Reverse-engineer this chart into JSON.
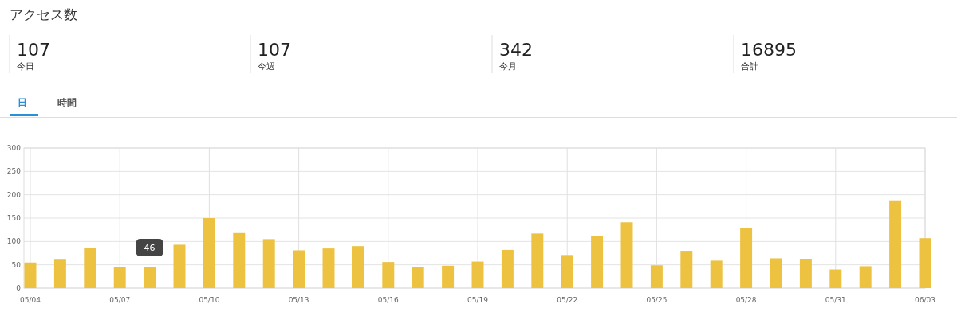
{
  "chart_data": [
    {
      "type": "other",
      "title": "アクセス数",
      "categories": [
        "今日",
        "今週",
        "今月",
        "合計"
      ],
      "values": [
        107,
        107,
        342,
        16895
      ],
      "data_labels": true
    },
    {
      "type": "bar",
      "color": "#ecc240",
      "x": [
        "--05-04",
        "--05-05",
        "--05-06",
        "--05-07",
        "--05-08",
        "--05-09",
        "--05-10",
        "--05-11",
        "--05-12",
        "--05-13",
        "--05-14",
        "--05-15",
        "--05-16",
        "--05-17",
        "--05-18",
        "--05-19",
        "--05-20",
        "--05-21",
        "--05-22",
        "--05-23",
        "--05-24",
        "--05-25",
        "--05-26",
        "--05-27",
        "--05-28",
        "--05-29",
        "--05-30",
        "--05-31",
        "--06-01",
        "--06-02",
        "--06-03"
      ],
      "values": [
        55,
        61,
        87,
        46,
        46,
        93,
        150,
        118,
        105,
        81,
        85,
        90,
        56,
        45,
        48,
        57,
        82,
        117,
        71,
        112,
        141,
        49,
        80,
        59,
        128,
        64,
        62,
        40,
        47,
        188,
        107
      ],
      "xlim": [
        "--05-04",
        "--06-03"
      ],
      "xticks": [
        {
          "value": "--05-04",
          "label": "05/04"
        },
        {
          "value": "--05-07",
          "label": "05/07"
        },
        {
          "value": "--05-10",
          "label": "05/10"
        },
        {
          "value": "--05-13",
          "label": "05/13"
        },
        {
          "value": "--05-16",
          "label": "05/16"
        },
        {
          "value": "--05-19",
          "label": "05/19"
        },
        {
          "value": "--05-22",
          "label": "05/22"
        },
        {
          "value": "--05-25",
          "label": "05/25"
        },
        {
          "value": "--05-28",
          "label": "05/28"
        },
        {
          "value": "--05-31",
          "label": "05/31"
        },
        {
          "value": "--06-03",
          "label": "06/03"
        }
      ],
      "ylim": [
        0,
        300
      ],
      "yticks": [
        0,
        50,
        100,
        150,
        200,
        250,
        300
      ],
      "grid": true,
      "annotations": [
        "日",
        "時間",
        {
          "text": "46",
          "x": "--05-08",
          "y": 46
        }
      ]
    }
  ]
}
